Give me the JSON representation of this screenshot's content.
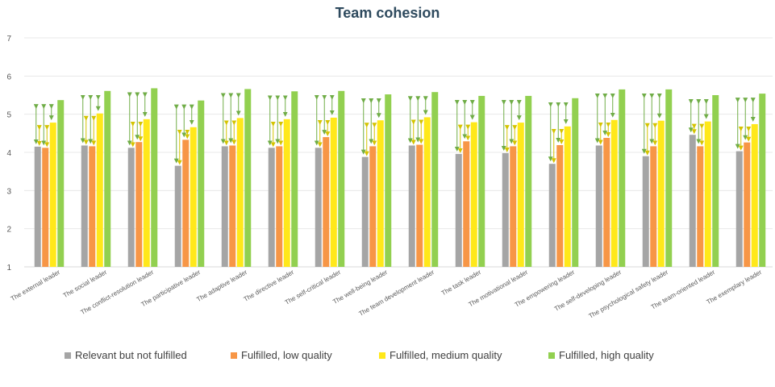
{
  "chart_data": {
    "type": "bar",
    "title": "Team cohesion",
    "xlabel": "",
    "ylabel": "",
    "ylim": [
      1,
      7
    ],
    "yticks": [
      "1",
      "2",
      "3",
      "4",
      "5",
      "6",
      "7"
    ],
    "grid": true,
    "legend_position": "bottom",
    "categories": [
      "The external leader",
      "The social leader",
      "The conflict-resolution leader",
      "The participative leader",
      "The adaptive leader",
      "The directive leader",
      "The self-critical leader",
      "The well-being leader",
      "The team development leader",
      "The task leader",
      "The motivational leader",
      "The empowering leader",
      "The self-developing leader",
      "The psychological safety leader",
      "The team-oriented leader",
      "The exemplary leader"
    ],
    "series": [
      {
        "name": "Relevant but not fulfilled",
        "color": "#a5a5a5",
        "values": [
          4.15,
          4.18,
          4.12,
          3.65,
          4.16,
          4.12,
          4.12,
          3.88,
          4.18,
          3.96,
          3.98,
          3.7,
          4.18,
          3.9,
          4.46,
          4.03
        ]
      },
      {
        "name": "Fulfilled, low quality",
        "color": "#f79646",
        "values": [
          4.12,
          4.16,
          4.27,
          4.33,
          4.18,
          4.16,
          4.4,
          4.16,
          4.2,
          4.29,
          4.16,
          4.19,
          4.38,
          4.16,
          4.16,
          4.26
        ]
      },
      {
        "name": "Fulfilled, medium quality",
        "color": "#ffe81a",
        "values": [
          4.78,
          5.02,
          4.87,
          4.66,
          4.9,
          4.87,
          4.91,
          4.84,
          4.92,
          4.79,
          4.78,
          4.68,
          4.85,
          4.83,
          4.81,
          4.74
        ]
      },
      {
        "name": "Fulfilled, high quality",
        "color": "#92d050",
        "values": [
          5.37,
          5.61,
          5.68,
          5.36,
          5.66,
          5.6,
          5.61,
          5.52,
          5.58,
          5.48,
          5.48,
          5.42,
          5.65,
          5.65,
          5.5,
          5.54
        ]
      }
    ],
    "significance_arrow_colors": {
      "between_lower_groups": "#d4c400",
      "to_high_quality": "#70ad47"
    }
  }
}
